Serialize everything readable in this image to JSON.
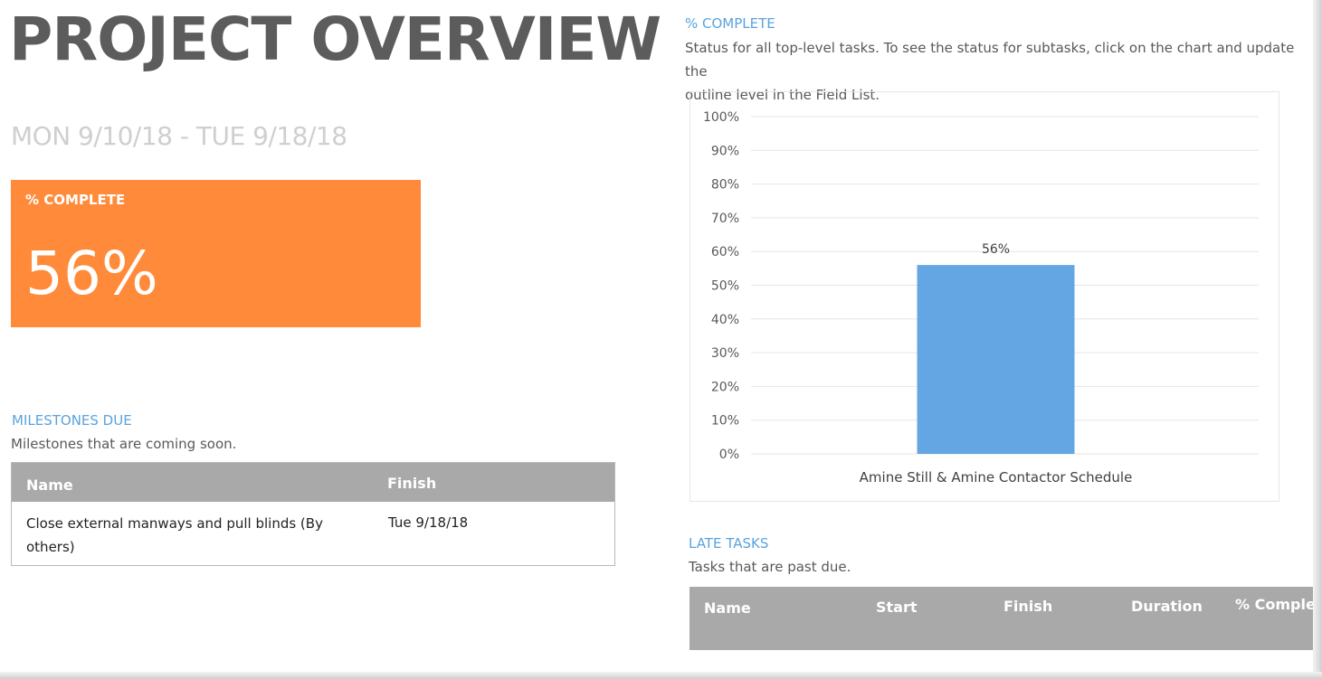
{
  "header": {
    "title": "PROJECT OVERVIEW",
    "date_range": "MON 9/10/18 -   TUE 9/18/18"
  },
  "percent_tile": {
    "label": "% COMPLETE",
    "value": "56%",
    "color": "#ff8b3a"
  },
  "milestones": {
    "title": "MILESTONES DUE",
    "subtitle": "Milestones that are coming soon.",
    "columns": [
      "Name",
      "Finish"
    ],
    "rows": [
      {
        "name_line1": "Close external manways and pull blinds (By",
        "name_line2": "others)",
        "finish": "Tue 9/18/18"
      }
    ]
  },
  "chart_section": {
    "title": "% COMPLETE",
    "description_line1": "Status for all top-level tasks. To see the status for subtasks, click on the chart and update the",
    "description_line2": "outline level in the Field List."
  },
  "chart_data": {
    "type": "bar",
    "categories": [
      "Amine Still & Amine Contactor Schedule"
    ],
    "values": [
      56
    ],
    "data_labels": [
      "56%"
    ],
    "y_ticks": [
      "0%",
      "10%",
      "20%",
      "30%",
      "40%",
      "50%",
      "60%",
      "70%",
      "80%",
      "90%",
      "100%"
    ],
    "ylim": [
      0,
      100
    ],
    "grid": true,
    "bar_color": "#64a6e3",
    "grid_color": "#e6e6e6"
  },
  "late_tasks": {
    "title": "LATE TASKS",
    "subtitle": "Tasks that are past due.",
    "columns": [
      "Name",
      "Start",
      "Finish",
      "Duration",
      "% Complete"
    ]
  },
  "colors": {
    "accent_blue": "#5aa3dc",
    "table_header_gray": "#a9a9a9"
  }
}
